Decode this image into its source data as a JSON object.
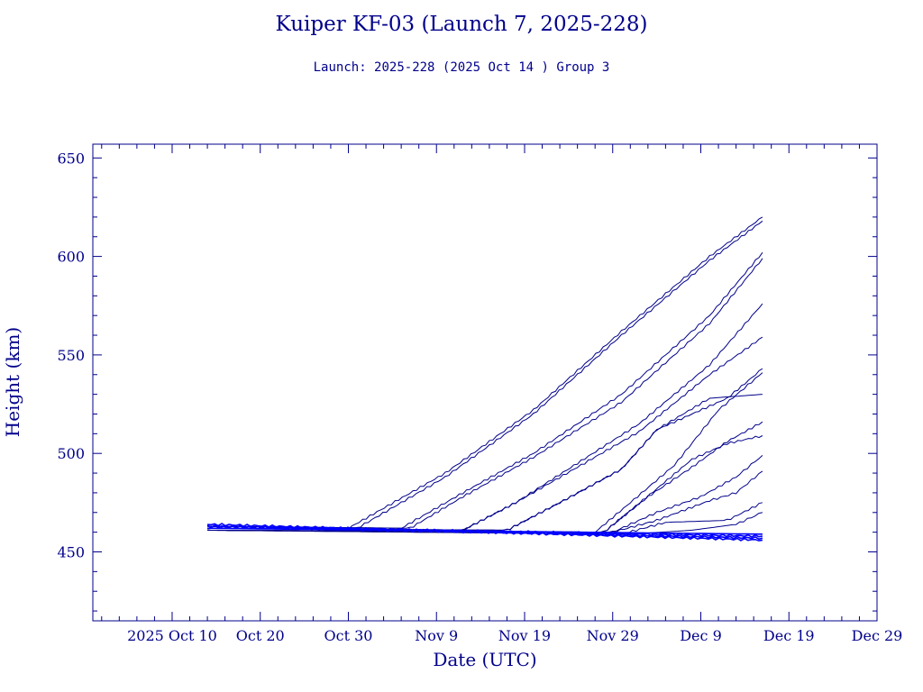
{
  "chart_data": {
    "type": "line",
    "title": "Kuiper KF-03 (Launch 7, 2025-228)",
    "subtitle": "Launch: 2025-228  (2025 Oct 14 )  Group 3",
    "xlabel": "Date (UTC)",
    "ylabel": "Height (km)",
    "xlim": [
      "2025-10-01",
      "2025-12-29"
    ],
    "ylim": [
      415,
      657
    ],
    "x_ticks": [
      "2025 Oct 10",
      "Oct 20",
      "Oct 30",
      "Nov  9",
      "Nov 19",
      "Nov 29",
      "Dec  9",
      "Dec 19",
      "Dec 29"
    ],
    "y_ticks": [
      450,
      500,
      550,
      600,
      650
    ],
    "grid": false,
    "color": "#00008b",
    "highlight_color": "#0000ff",
    "series": [
      {
        "x": [
          "2025-10-14",
          "2025-10-30",
          "2025-11-10",
          "2025-11-20",
          "2025-11-30",
          "2025-12-10",
          "2025-12-16"
        ],
        "y": [
          463,
          462,
          490,
          522,
          562,
          600,
          620
        ]
      },
      {
        "x": [
          "2025-10-14",
          "2025-10-31",
          "2025-11-10",
          "2025-11-20",
          "2025-11-30",
          "2025-12-10",
          "2025-12-16"
        ],
        "y": [
          463,
          462,
          488,
          520,
          560,
          598,
          618
        ]
      },
      {
        "x": [
          "2025-10-14",
          "2025-11-05",
          "2025-11-12",
          "2025-11-20",
          "2025-11-30",
          "2025-12-10",
          "2025-12-16"
        ],
        "y": [
          463,
          462,
          480,
          500,
          530,
          570,
          602
        ]
      },
      {
        "x": [
          "2025-10-14",
          "2025-11-06",
          "2025-11-12",
          "2025-11-20",
          "2025-11-30",
          "2025-12-10",
          "2025-12-16"
        ],
        "y": [
          463,
          462,
          478,
          498,
          526,
          566,
          599
        ]
      },
      {
        "x": [
          "2025-10-14",
          "2025-11-12",
          "2025-11-18",
          "2025-11-25",
          "2025-12-02",
          "2025-12-10",
          "2025-12-16"
        ],
        "y": [
          462,
          461,
          475,
          495,
          515,
          545,
          576
        ]
      },
      {
        "x": [
          "2025-10-14",
          "2025-11-12",
          "2025-11-18",
          "2025-11-25",
          "2025-12-02",
          "2025-12-10",
          "2025-12-16"
        ],
        "y": [
          462,
          461,
          475,
          493,
          511,
          540,
          559
        ]
      },
      {
        "x": [
          "2025-10-14",
          "2025-11-17",
          "2025-11-23",
          "2025-11-30",
          "2025-12-04",
          "2025-12-10",
          "2025-12-16"
        ],
        "y": [
          462,
          461,
          475,
          492,
          512,
          528,
          530
        ]
      },
      {
        "x": [
          "2025-10-14",
          "2025-11-17",
          "2025-11-23",
          "2025-11-30",
          "2025-12-04",
          "2025-12-12",
          "2025-12-16"
        ],
        "y": [
          462,
          461,
          475,
          492,
          512,
          528,
          543
        ]
      },
      {
        "x": [
          "2025-10-14",
          "2025-11-27",
          "2025-12-01",
          "2025-12-06",
          "2025-12-11",
          "2025-12-16"
        ],
        "y": [
          461,
          460,
          475,
          494,
          522,
          541
        ]
      },
      {
        "x": [
          "2025-10-14",
          "2025-11-28",
          "2025-12-03",
          "2025-12-08",
          "2025-12-12",
          "2025-12-16"
        ],
        "y": [
          461,
          460,
          478,
          493,
          506,
          516
        ]
      },
      {
        "x": [
          "2025-10-14",
          "2025-11-28",
          "2025-12-04",
          "2025-12-08",
          "2025-12-12",
          "2025-12-16"
        ],
        "y": [
          461,
          460,
          482,
          497,
          505,
          509
        ]
      },
      {
        "x": [
          "2025-10-14",
          "2025-11-29",
          "2025-12-04",
          "2025-12-09",
          "2025-12-13",
          "2025-12-16"
        ],
        "y": [
          461,
          460,
          470,
          478,
          488,
          499
        ]
      },
      {
        "x": [
          "2025-10-14",
          "2025-11-29",
          "2025-12-04",
          "2025-12-10",
          "2025-12-13",
          "2025-12-16"
        ],
        "y": [
          461,
          460,
          466,
          476,
          480,
          491
        ]
      },
      {
        "x": [
          "2025-10-14",
          "2025-11-30",
          "2025-12-05",
          "2025-12-12",
          "2025-12-16"
        ],
        "y": [
          461,
          459,
          465,
          466,
          475
        ]
      },
      {
        "x": [
          "2025-10-14",
          "2025-12-01",
          "2025-12-08",
          "2025-12-13",
          "2025-12-16"
        ],
        "y": [
          461,
          459,
          461,
          464,
          470
        ]
      },
      {
        "x": [
          "2025-10-14",
          "2025-12-16"
        ],
        "y": [
          462,
          459
        ]
      },
      {
        "x": [
          "2025-10-14",
          "2025-12-16"
        ],
        "y": [
          463,
          458
        ]
      },
      {
        "x": [
          "2025-10-14",
          "2025-12-16"
        ],
        "y": [
          463,
          457
        ]
      },
      {
        "x": [
          "2025-10-14",
          "2025-12-16"
        ],
        "y": [
          464,
          456
        ]
      }
    ]
  }
}
